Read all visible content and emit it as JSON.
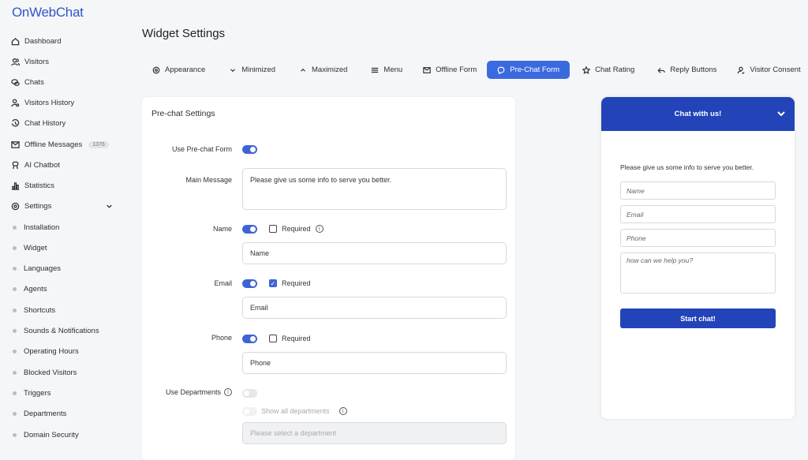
{
  "app": {
    "logo": "OnWebChat",
    "title": "Widget Settings"
  },
  "sidebar": {
    "items": [
      {
        "label": "Dashboard",
        "icon": "home-icon"
      },
      {
        "label": "Visitors",
        "icon": "users-icon"
      },
      {
        "label": "Chats",
        "icon": "chat-bubbles-icon"
      },
      {
        "label": "Visitors History",
        "icon": "user-search-icon"
      },
      {
        "label": "Chat History",
        "icon": "history-icon"
      },
      {
        "label": "Offline Messages",
        "icon": "mail-icon",
        "badge": "1376"
      },
      {
        "label": "AI Chatbot",
        "icon": "robot-icon"
      },
      {
        "label": "Statistics",
        "icon": "bar-chart-icon"
      },
      {
        "label": "Settings",
        "icon": "gear-icon"
      }
    ],
    "subitems": [
      "Installation",
      "Widget",
      "Languages",
      "Agents",
      "Shortcuts",
      "Sounds & Notifications",
      "Operating Hours",
      "Blocked Visitors",
      "Triggers",
      "Departments",
      "Domain Security"
    ]
  },
  "tabs": [
    {
      "label": "Appearance"
    },
    {
      "label": "Minimized"
    },
    {
      "label": "Maximized"
    },
    {
      "label": "Menu"
    },
    {
      "label": "Offline Form"
    },
    {
      "label": "Pre-Chat Form",
      "active": true
    },
    {
      "label": "Chat Rating"
    },
    {
      "label": "Reply Buttons"
    },
    {
      "label": "Visitor Consent"
    }
  ],
  "form": {
    "title": "Pre-chat Settings",
    "use_prechat_label": "Use Pre-chat Form",
    "use_prechat": true,
    "main_message_label": "Main Message",
    "main_message": "Please give us some info to serve you better.",
    "required_label": "Required",
    "name": {
      "label": "Name",
      "enabled": true,
      "required": false,
      "value": "Name"
    },
    "email": {
      "label": "Email",
      "enabled": true,
      "required": true,
      "value": "Email"
    },
    "phone": {
      "label": "Phone",
      "enabled": true,
      "required": false,
      "value": "Phone"
    },
    "departments_label": "Use Departments",
    "use_departments": false,
    "show_all_label": "Show all departments",
    "department_placeholder": "Please select a department"
  },
  "preview": {
    "header": "Chat with us!",
    "message": "Please give us some info to serve you better.",
    "name_ph": "Name",
    "email_ph": "Email",
    "phone_ph": "Phone",
    "msg_ph": "how can we help you?",
    "button": "Start chat!"
  },
  "colors": {
    "accent": "#3b6ae0",
    "widget": "#2244b8",
    "toggle": "#3f63d6"
  }
}
